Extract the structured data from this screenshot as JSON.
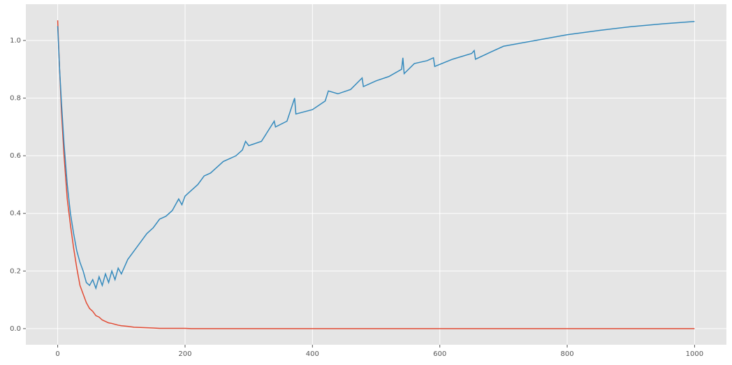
{
  "chart_data": {
    "type": "line",
    "x": [
      0,
      3,
      6,
      10,
      15,
      20,
      25,
      30,
      35,
      40,
      45,
      50,
      55,
      60,
      65,
      70,
      75,
      80,
      85,
      90,
      95,
      100,
      110,
      120,
      130,
      140,
      150,
      160,
      170,
      180,
      190,
      195,
      200,
      210,
      220,
      230,
      240,
      250,
      260,
      270,
      280,
      290,
      295,
      300,
      320,
      340,
      342,
      360,
      372,
      374,
      400,
      420,
      425,
      440,
      460,
      478,
      480,
      500,
      520,
      540,
      542,
      544,
      560,
      580,
      590,
      592,
      620,
      650,
      654,
      656,
      680,
      700,
      750,
      800,
      850,
      900,
      950,
      1000
    ],
    "series": [
      {
        "color": "#E24A33",
        "values": [
          1.07,
          0.9,
          0.75,
          0.6,
          0.45,
          0.36,
          0.28,
          0.21,
          0.15,
          0.12,
          0.09,
          0.07,
          0.06,
          0.045,
          0.04,
          0.03,
          0.025,
          0.02,
          0.018,
          0.015,
          0.012,
          0.01,
          0.008,
          0.005,
          0.004,
          0.003,
          0.002,
          0.001,
          0.001,
          0.001,
          0.001,
          0.001,
          0.001,
          0,
          0,
          0,
          0,
          0,
          0,
          0,
          0,
          0,
          0,
          0,
          0,
          0,
          0,
          0,
          0,
          0,
          0,
          0,
          0,
          0,
          0,
          0,
          0,
          0,
          0,
          0,
          0,
          0,
          0,
          0,
          0,
          0,
          0,
          0,
          0,
          0,
          0,
          0,
          0,
          0,
          0,
          0,
          0,
          0
        ]
      },
      {
        "color": "#348ABD",
        "values": [
          1.05,
          0.9,
          0.78,
          0.64,
          0.5,
          0.4,
          0.33,
          0.27,
          0.23,
          0.2,
          0.16,
          0.15,
          0.17,
          0.14,
          0.18,
          0.15,
          0.19,
          0.16,
          0.2,
          0.17,
          0.21,
          0.19,
          0.24,
          0.27,
          0.3,
          0.33,
          0.35,
          0.38,
          0.39,
          0.41,
          0.45,
          0.43,
          0.46,
          0.48,
          0.5,
          0.53,
          0.54,
          0.56,
          0.58,
          0.59,
          0.6,
          0.62,
          0.65,
          0.635,
          0.65,
          0.72,
          0.7,
          0.72,
          0.8,
          0.745,
          0.76,
          0.79,
          0.825,
          0.815,
          0.83,
          0.87,
          0.84,
          0.86,
          0.875,
          0.9,
          0.94,
          0.885,
          0.92,
          0.93,
          0.94,
          0.91,
          0.935,
          0.955,
          0.965,
          0.935,
          0.96,
          0.98,
          1.0,
          1.02,
          1.035,
          1.048,
          1.058,
          1.066
        ]
      }
    ],
    "xlim": [
      -50,
      1050
    ],
    "ylim": [
      -0.056,
      1.126
    ],
    "xticks": [
      0,
      200,
      400,
      600,
      800,
      1000
    ],
    "yticks": [
      {
        "value": 0,
        "label": "0.0"
      },
      0.2,
      0.4,
      0.6,
      0.8,
      {
        "value": 1,
        "label": "1.0"
      }
    ],
    "grid": true
  }
}
